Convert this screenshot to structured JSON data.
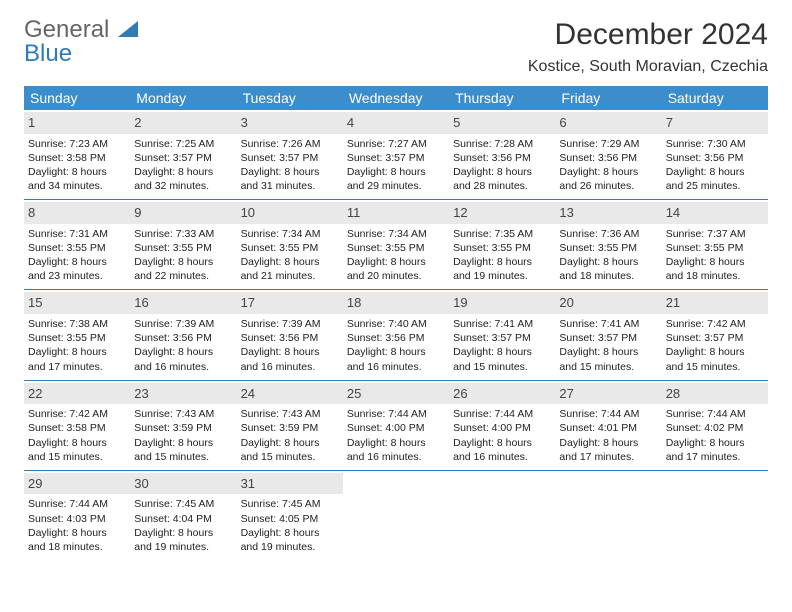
{
  "brand": {
    "name1": "General",
    "name2": "Blue"
  },
  "title": "December 2024",
  "location": "Kostice, South Moravian, Czechia",
  "dayNames": [
    "Sunday",
    "Monday",
    "Tuesday",
    "Wednesday",
    "Thursday",
    "Friday",
    "Saturday"
  ],
  "colors": {
    "headerBg": "#3c8dcc",
    "accent": "#2f7ab8",
    "dayNumBg": "#e9e9e9",
    "text": "#333333"
  },
  "weeks": [
    [
      {
        "n": "1",
        "sr": "Sunrise: 7:23 AM",
        "ss": "Sunset: 3:58 PM",
        "d1": "Daylight: 8 hours",
        "d2": "and 34 minutes."
      },
      {
        "n": "2",
        "sr": "Sunrise: 7:25 AM",
        "ss": "Sunset: 3:57 PM",
        "d1": "Daylight: 8 hours",
        "d2": "and 32 minutes."
      },
      {
        "n": "3",
        "sr": "Sunrise: 7:26 AM",
        "ss": "Sunset: 3:57 PM",
        "d1": "Daylight: 8 hours",
        "d2": "and 31 minutes."
      },
      {
        "n": "4",
        "sr": "Sunrise: 7:27 AM",
        "ss": "Sunset: 3:57 PM",
        "d1": "Daylight: 8 hours",
        "d2": "and 29 minutes."
      },
      {
        "n": "5",
        "sr": "Sunrise: 7:28 AM",
        "ss": "Sunset: 3:56 PM",
        "d1": "Daylight: 8 hours",
        "d2": "and 28 minutes."
      },
      {
        "n": "6",
        "sr": "Sunrise: 7:29 AM",
        "ss": "Sunset: 3:56 PM",
        "d1": "Daylight: 8 hours",
        "d2": "and 26 minutes."
      },
      {
        "n": "7",
        "sr": "Sunrise: 7:30 AM",
        "ss": "Sunset: 3:56 PM",
        "d1": "Daylight: 8 hours",
        "d2": "and 25 minutes."
      }
    ],
    [
      {
        "n": "8",
        "sr": "Sunrise: 7:31 AM",
        "ss": "Sunset: 3:55 PM",
        "d1": "Daylight: 8 hours",
        "d2": "and 23 minutes."
      },
      {
        "n": "9",
        "sr": "Sunrise: 7:33 AM",
        "ss": "Sunset: 3:55 PM",
        "d1": "Daylight: 8 hours",
        "d2": "and 22 minutes."
      },
      {
        "n": "10",
        "sr": "Sunrise: 7:34 AM",
        "ss": "Sunset: 3:55 PM",
        "d1": "Daylight: 8 hours",
        "d2": "and 21 minutes."
      },
      {
        "n": "11",
        "sr": "Sunrise: 7:34 AM",
        "ss": "Sunset: 3:55 PM",
        "d1": "Daylight: 8 hours",
        "d2": "and 20 minutes."
      },
      {
        "n": "12",
        "sr": "Sunrise: 7:35 AM",
        "ss": "Sunset: 3:55 PM",
        "d1": "Daylight: 8 hours",
        "d2": "and 19 minutes."
      },
      {
        "n": "13",
        "sr": "Sunrise: 7:36 AM",
        "ss": "Sunset: 3:55 PM",
        "d1": "Daylight: 8 hours",
        "d2": "and 18 minutes."
      },
      {
        "n": "14",
        "sr": "Sunrise: 7:37 AM",
        "ss": "Sunset: 3:55 PM",
        "d1": "Daylight: 8 hours",
        "d2": "and 18 minutes."
      }
    ],
    [
      {
        "n": "15",
        "sr": "Sunrise: 7:38 AM",
        "ss": "Sunset: 3:55 PM",
        "d1": "Daylight: 8 hours",
        "d2": "and 17 minutes."
      },
      {
        "n": "16",
        "sr": "Sunrise: 7:39 AM",
        "ss": "Sunset: 3:56 PM",
        "d1": "Daylight: 8 hours",
        "d2": "and 16 minutes."
      },
      {
        "n": "17",
        "sr": "Sunrise: 7:39 AM",
        "ss": "Sunset: 3:56 PM",
        "d1": "Daylight: 8 hours",
        "d2": "and 16 minutes."
      },
      {
        "n": "18",
        "sr": "Sunrise: 7:40 AM",
        "ss": "Sunset: 3:56 PM",
        "d1": "Daylight: 8 hours",
        "d2": "and 16 minutes."
      },
      {
        "n": "19",
        "sr": "Sunrise: 7:41 AM",
        "ss": "Sunset: 3:57 PM",
        "d1": "Daylight: 8 hours",
        "d2": "and 15 minutes."
      },
      {
        "n": "20",
        "sr": "Sunrise: 7:41 AM",
        "ss": "Sunset: 3:57 PM",
        "d1": "Daylight: 8 hours",
        "d2": "and 15 minutes."
      },
      {
        "n": "21",
        "sr": "Sunrise: 7:42 AM",
        "ss": "Sunset: 3:57 PM",
        "d1": "Daylight: 8 hours",
        "d2": "and 15 minutes."
      }
    ],
    [
      {
        "n": "22",
        "sr": "Sunrise: 7:42 AM",
        "ss": "Sunset: 3:58 PM",
        "d1": "Daylight: 8 hours",
        "d2": "and 15 minutes."
      },
      {
        "n": "23",
        "sr": "Sunrise: 7:43 AM",
        "ss": "Sunset: 3:59 PM",
        "d1": "Daylight: 8 hours",
        "d2": "and 15 minutes."
      },
      {
        "n": "24",
        "sr": "Sunrise: 7:43 AM",
        "ss": "Sunset: 3:59 PM",
        "d1": "Daylight: 8 hours",
        "d2": "and 15 minutes."
      },
      {
        "n": "25",
        "sr": "Sunrise: 7:44 AM",
        "ss": "Sunset: 4:00 PM",
        "d1": "Daylight: 8 hours",
        "d2": "and 16 minutes."
      },
      {
        "n": "26",
        "sr": "Sunrise: 7:44 AM",
        "ss": "Sunset: 4:00 PM",
        "d1": "Daylight: 8 hours",
        "d2": "and 16 minutes."
      },
      {
        "n": "27",
        "sr": "Sunrise: 7:44 AM",
        "ss": "Sunset: 4:01 PM",
        "d1": "Daylight: 8 hours",
        "d2": "and 17 minutes."
      },
      {
        "n": "28",
        "sr": "Sunrise: 7:44 AM",
        "ss": "Sunset: 4:02 PM",
        "d1": "Daylight: 8 hours",
        "d2": "and 17 minutes."
      }
    ],
    [
      {
        "n": "29",
        "sr": "Sunrise: 7:44 AM",
        "ss": "Sunset: 4:03 PM",
        "d1": "Daylight: 8 hours",
        "d2": "and 18 minutes."
      },
      {
        "n": "30",
        "sr": "Sunrise: 7:45 AM",
        "ss": "Sunset: 4:04 PM",
        "d1": "Daylight: 8 hours",
        "d2": "and 19 minutes."
      },
      {
        "n": "31",
        "sr": "Sunrise: 7:45 AM",
        "ss": "Sunset: 4:05 PM",
        "d1": "Daylight: 8 hours",
        "d2": "and 19 minutes."
      },
      {
        "empty": true
      },
      {
        "empty": true
      },
      {
        "empty": true
      },
      {
        "empty": true
      }
    ]
  ]
}
